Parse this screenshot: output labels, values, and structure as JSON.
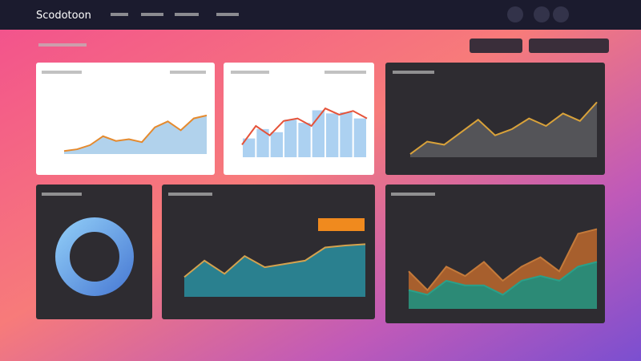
{
  "header": {
    "brand": "Scodotoon"
  },
  "panels": [
    {
      "chart_data": {
        "type": "area",
        "ylim": [
          0,
          100
        ],
        "series": [
          {
            "color": "#e58a2e",
            "fill": "#a9cdea",
            "values": [
              5,
              8,
              15,
              30,
              22,
              25,
              20,
              45,
              55,
              40,
              60,
              65
            ]
          }
        ]
      }
    },
    {
      "chart_data": {
        "type": "bar-line",
        "ylim": [
          0,
          100
        ],
        "series": [
          {
            "color": "#9ec9ee",
            "values": [
              30,
              45,
              40,
              60,
              55,
              75,
              70,
              72,
              62
            ]
          },
          {
            "color": "#e5533a",
            "values": [
              20,
              50,
              35,
              58,
              62,
              50,
              78,
              68,
              74,
              62
            ]
          }
        ]
      }
    },
    {
      "chart_data": {
        "type": "area",
        "ylim": [
          0,
          100
        ],
        "series": [
          {
            "color": "#d9a23a",
            "fill": "#59595d",
            "values": [
              5,
              25,
              20,
              40,
              60,
              35,
              45,
              62,
              50,
              70,
              58,
              88
            ]
          }
        ]
      }
    },
    {
      "chart_data": {
        "type": "donut",
        "color": "#5fa0e0",
        "values": [
          100
        ]
      }
    },
    {
      "chart_data": {
        "type": "area",
        "ylim": [
          0,
          100
        ],
        "series": [
          {
            "color": "#d4a24e",
            "fill": "#2a8a9a",
            "values": [
              30,
              55,
              35,
              62,
              45,
              50,
              55,
              75,
              78,
              80
            ]
          }
        ]
      }
    },
    {
      "chart_data": {
        "type": "area",
        "ylim": [
          0,
          100
        ],
        "series": [
          {
            "color": "#c47a3a",
            "fill": "#b5652e",
            "values": [
              40,
              20,
              45,
              35,
              50,
              30,
              45,
              55,
              40,
              80,
              85
            ]
          },
          {
            "color": "#2aa08a",
            "fill": "#1f8f7e",
            "values": [
              20,
              15,
              30,
              25,
              25,
              15,
              30,
              35,
              30,
              45,
              50
            ]
          }
        ]
      }
    }
  ]
}
